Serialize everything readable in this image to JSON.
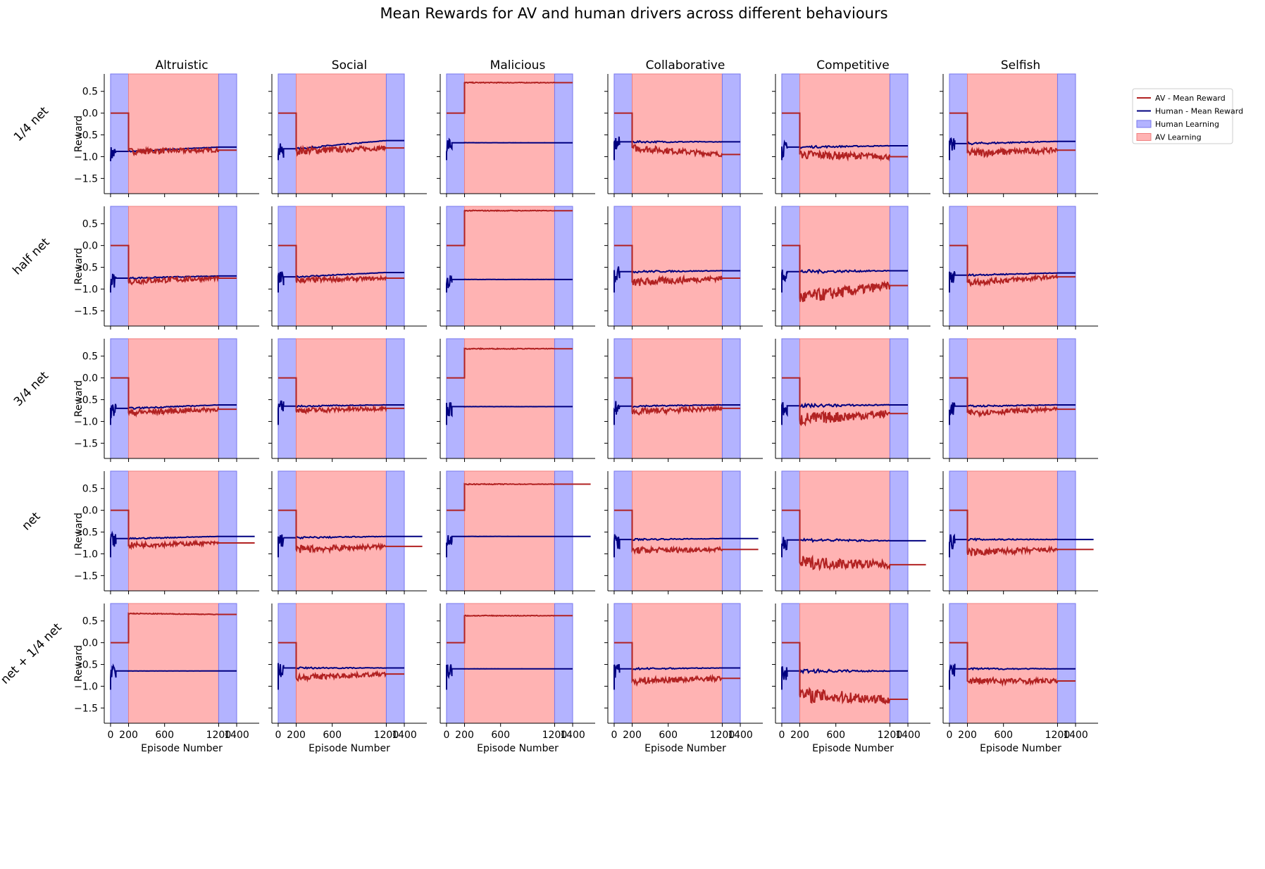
{
  "chart_data": {
    "type": "line",
    "title": "Mean Rewards for AV and human drivers across different behaviours",
    "columns": [
      "Altruistic",
      "Social",
      "Malicious",
      "Collaborative",
      "Competitive",
      "Selfish"
    ],
    "rows": [
      "1/4 net",
      "half net",
      "3/4 net",
      "net",
      "net + 1/4 net"
    ],
    "xlabel": "Episode Number",
    "ylabel": "Reward",
    "xticks": [
      0,
      200,
      600,
      1200,
      1400
    ],
    "xtick_labels": [
      "0",
      "200",
      "600",
      "1200",
      "1400"
    ],
    "yticks": [
      0.5,
      0.0,
      -0.5,
      -1.0,
      -1.5
    ],
    "ytick_labels": [
      "0.5",
      "0.0",
      "−0.5",
      "−1.0",
      "−1.5"
    ],
    "xlim": [
      -70,
      1650
    ],
    "ylim": [
      -1.85,
      0.9
    ],
    "shaded_regions": [
      {
        "name": "Human Learning",
        "x": [
          0,
          200
        ]
      },
      {
        "name": "AV Learning",
        "x": [
          200,
          1200
        ]
      },
      {
        "name": "Human Learning",
        "x": [
          1200,
          1400
        ]
      }
    ],
    "legend": {
      "location": "top-right",
      "entries": [
        "AV - Mean Reward",
        "Human - Mean Reward",
        "Human Learning",
        "AV Learning"
      ]
    },
    "colors": {
      "av": "#b22222",
      "human": "#000080",
      "human_shade": "#b3b3ff",
      "human_shade_edge": "#7777ee",
      "av_shade": "#ffb3b3"
    },
    "series": [
      {
        "row": "1/4 net",
        "column": "Altruistic",
        "av_level": -0.88,
        "human_level": -0.88,
        "av_end": -0.85,
        "human_end": -0.78,
        "noise": 0.07,
        "x_end": 1400
      },
      {
        "row": "1/4 net",
        "column": "Social",
        "av_level": -0.87,
        "human_level": -0.82,
        "av_end": -0.8,
        "human_end": -0.63,
        "noise": 0.08,
        "x_end": 1400
      },
      {
        "row": "1/4 net",
        "column": "Malicious",
        "av_level": 0.7,
        "human_level": -0.68,
        "av_end": 0.7,
        "human_end": -0.68,
        "noise": 0.01,
        "x_end": 1400
      },
      {
        "row": "1/4 net",
        "column": "Collaborative",
        "av_level": -0.8,
        "human_level": -0.66,
        "av_end": -0.95,
        "human_end": -0.66,
        "noise": 0.08,
        "x_end": 1400
      },
      {
        "row": "1/4 net",
        "column": "Competitive",
        "av_level": -0.95,
        "human_level": -0.78,
        "av_end": -1.0,
        "human_end": -0.75,
        "noise": 0.1,
        "x_end": 1400
      },
      {
        "row": "1/4 net",
        "column": "Selfish",
        "av_level": -0.92,
        "human_level": -0.7,
        "av_end": -0.85,
        "human_end": -0.65,
        "noise": 0.09,
        "x_end": 1400
      },
      {
        "row": "half net",
        "column": "Altruistic",
        "av_level": -0.82,
        "human_level": -0.75,
        "av_end": -0.75,
        "human_end": -0.7,
        "noise": 0.07,
        "x_end": 1400
      },
      {
        "row": "half net",
        "column": "Social",
        "av_level": -0.8,
        "human_level": -0.72,
        "av_end": -0.75,
        "human_end": -0.62,
        "noise": 0.06,
        "x_end": 1400
      },
      {
        "row": "half net",
        "column": "Malicious",
        "av_level": 0.8,
        "human_level": -0.78,
        "av_end": 0.8,
        "human_end": -0.78,
        "noise": 0.01,
        "x_end": 1400
      },
      {
        "row": "half net",
        "column": "Collaborative",
        "av_level": -0.85,
        "human_level": -0.6,
        "av_end": -0.75,
        "human_end": -0.58,
        "noise": 0.09,
        "x_end": 1400
      },
      {
        "row": "half net",
        "column": "Competitive",
        "av_level": -1.2,
        "human_level": -0.6,
        "av_end": -0.92,
        "human_end": -0.58,
        "noise": 0.15,
        "x_end": 1400
      },
      {
        "row": "half net",
        "column": "Selfish",
        "av_level": -0.85,
        "human_level": -0.68,
        "av_end": -0.72,
        "human_end": -0.63,
        "noise": 0.07,
        "x_end": 1400
      },
      {
        "row": "3/4 net",
        "column": "Altruistic",
        "av_level": -0.8,
        "human_level": -0.7,
        "av_end": -0.72,
        "human_end": -0.62,
        "noise": 0.07,
        "x_end": 1400
      },
      {
        "row": "3/4 net",
        "column": "Social",
        "av_level": -0.75,
        "human_level": -0.65,
        "av_end": -0.7,
        "human_end": -0.62,
        "noise": 0.06,
        "x_end": 1400
      },
      {
        "row": "3/4 net",
        "column": "Malicious",
        "av_level": 0.67,
        "human_level": -0.66,
        "av_end": 0.67,
        "human_end": -0.66,
        "noise": 0.01,
        "x_end": 1400
      },
      {
        "row": "3/4 net",
        "column": "Collaborative",
        "av_level": -0.78,
        "human_level": -0.65,
        "av_end": -0.7,
        "human_end": -0.62,
        "noise": 0.07,
        "x_end": 1400
      },
      {
        "row": "3/4 net",
        "column": "Competitive",
        "av_level": -0.95,
        "human_level": -0.64,
        "av_end": -0.82,
        "human_end": -0.62,
        "noise": 0.14,
        "x_end": 1400
      },
      {
        "row": "3/4 net",
        "column": "Selfish",
        "av_level": -0.8,
        "human_level": -0.65,
        "av_end": -0.72,
        "human_end": -0.62,
        "noise": 0.07,
        "x_end": 1400
      },
      {
        "row": "net",
        "column": "Altruistic",
        "av_level": -0.8,
        "human_level": -0.65,
        "av_end": -0.75,
        "human_end": -0.6,
        "noise": 0.06,
        "x_end": 1600
      },
      {
        "row": "net",
        "column": "Social",
        "av_level": -0.9,
        "human_level": -0.63,
        "av_end": -0.83,
        "human_end": -0.6,
        "noise": 0.08,
        "x_end": 1600
      },
      {
        "row": "net",
        "column": "Malicious",
        "av_level": 0.6,
        "human_level": -0.6,
        "av_end": 0.6,
        "human_end": -0.6,
        "noise": 0.01,
        "x_end": 1600
      },
      {
        "row": "net",
        "column": "Collaborative",
        "av_level": -0.92,
        "human_level": -0.67,
        "av_end": -0.9,
        "human_end": -0.65,
        "noise": 0.07,
        "x_end": 1600
      },
      {
        "row": "net",
        "column": "Competitive",
        "av_level": -1.2,
        "human_level": -0.68,
        "av_end": -1.25,
        "human_end": -0.7,
        "noise": 0.14,
        "x_end": 1600
      },
      {
        "row": "net",
        "column": "Selfish",
        "av_level": -0.97,
        "human_level": -0.67,
        "av_end": -0.9,
        "human_end": -0.67,
        "noise": 0.08,
        "x_end": 1600
      },
      {
        "row": "net + 1/4 net",
        "column": "Altruistic",
        "av_level": 0.67,
        "human_level": -0.65,
        "av_end": 0.65,
        "human_end": -0.65,
        "noise": 0.01,
        "x_end": 1400
      },
      {
        "row": "net + 1/4 net",
        "column": "Social",
        "av_level": -0.8,
        "human_level": -0.58,
        "av_end": -0.72,
        "human_end": -0.58,
        "noise": 0.07,
        "x_end": 1400
      },
      {
        "row": "net + 1/4 net",
        "column": "Malicious",
        "av_level": 0.62,
        "human_level": -0.6,
        "av_end": 0.62,
        "human_end": -0.6,
        "noise": 0.01,
        "x_end": 1400
      },
      {
        "row": "net + 1/4 net",
        "column": "Collaborative",
        "av_level": -0.88,
        "human_level": -0.6,
        "av_end": -0.82,
        "human_end": -0.58,
        "noise": 0.08,
        "x_end": 1400
      },
      {
        "row": "net + 1/4 net",
        "column": "Competitive",
        "av_level": -1.2,
        "human_level": -0.65,
        "av_end": -1.3,
        "human_end": -0.65,
        "noise": 0.16,
        "x_end": 1400
      },
      {
        "row": "net + 1/4 net",
        "column": "Selfish",
        "av_level": -0.88,
        "human_level": -0.6,
        "av_end": -0.88,
        "human_end": -0.6,
        "noise": 0.08,
        "x_end": 1400
      }
    ]
  }
}
